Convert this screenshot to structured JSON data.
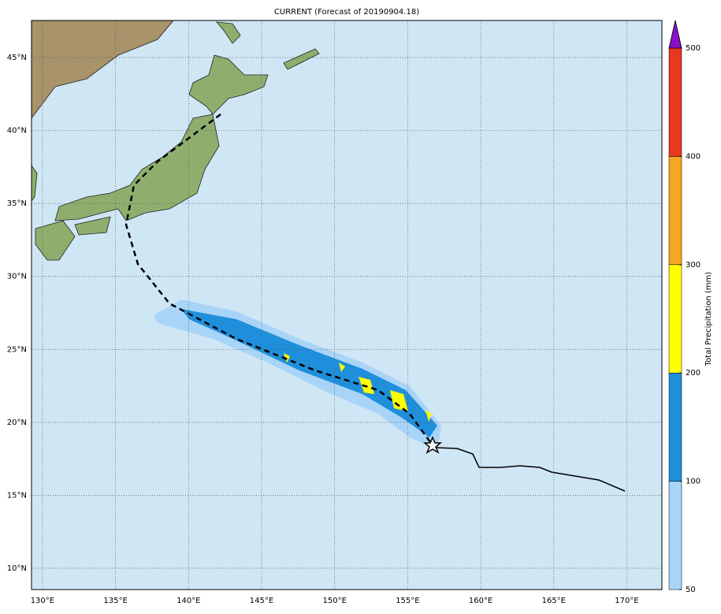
{
  "title": "CURRENT (Forecast of 20190904.18)",
  "map": {
    "lon_range": [
      129.25,
      172.4
    ],
    "lat_range": [
      8.54,
      47.54
    ],
    "lon_ticks": [
      {
        "value": 130,
        "label": "130°E"
      },
      {
        "value": 135,
        "label": "135°E"
      },
      {
        "value": 140,
        "label": "140°E"
      },
      {
        "value": 145,
        "label": "145°E"
      },
      {
        "value": 150,
        "label": "150°E"
      },
      {
        "value": 155,
        "label": "155°E"
      },
      {
        "value": 160,
        "label": "160°E"
      },
      {
        "value": 165,
        "label": "165°E"
      },
      {
        "value": 170,
        "label": "170°E"
      }
    ],
    "lat_ticks": [
      {
        "value": 10,
        "label": "10°N"
      },
      {
        "value": 15,
        "label": "15°N"
      },
      {
        "value": 20,
        "label": "20°N"
      },
      {
        "value": 25,
        "label": "25°N"
      },
      {
        "value": 30,
        "label": "30°N"
      },
      {
        "value": 35,
        "label": "35°N"
      },
      {
        "value": 40,
        "label": "40°N"
      },
      {
        "value": 45,
        "label": "45°N"
      }
    ],
    "grid": true
  },
  "colorbar": {
    "label": "Total Precipitation (mm)",
    "levels": [
      50,
      100,
      200,
      300,
      400,
      500
    ],
    "colors": [
      "#a8d4f8",
      "#1f8fdc",
      "#ffff00",
      "#f5a623",
      "#e83820"
    ],
    "extend_color": "#8a10c8"
  }
}
